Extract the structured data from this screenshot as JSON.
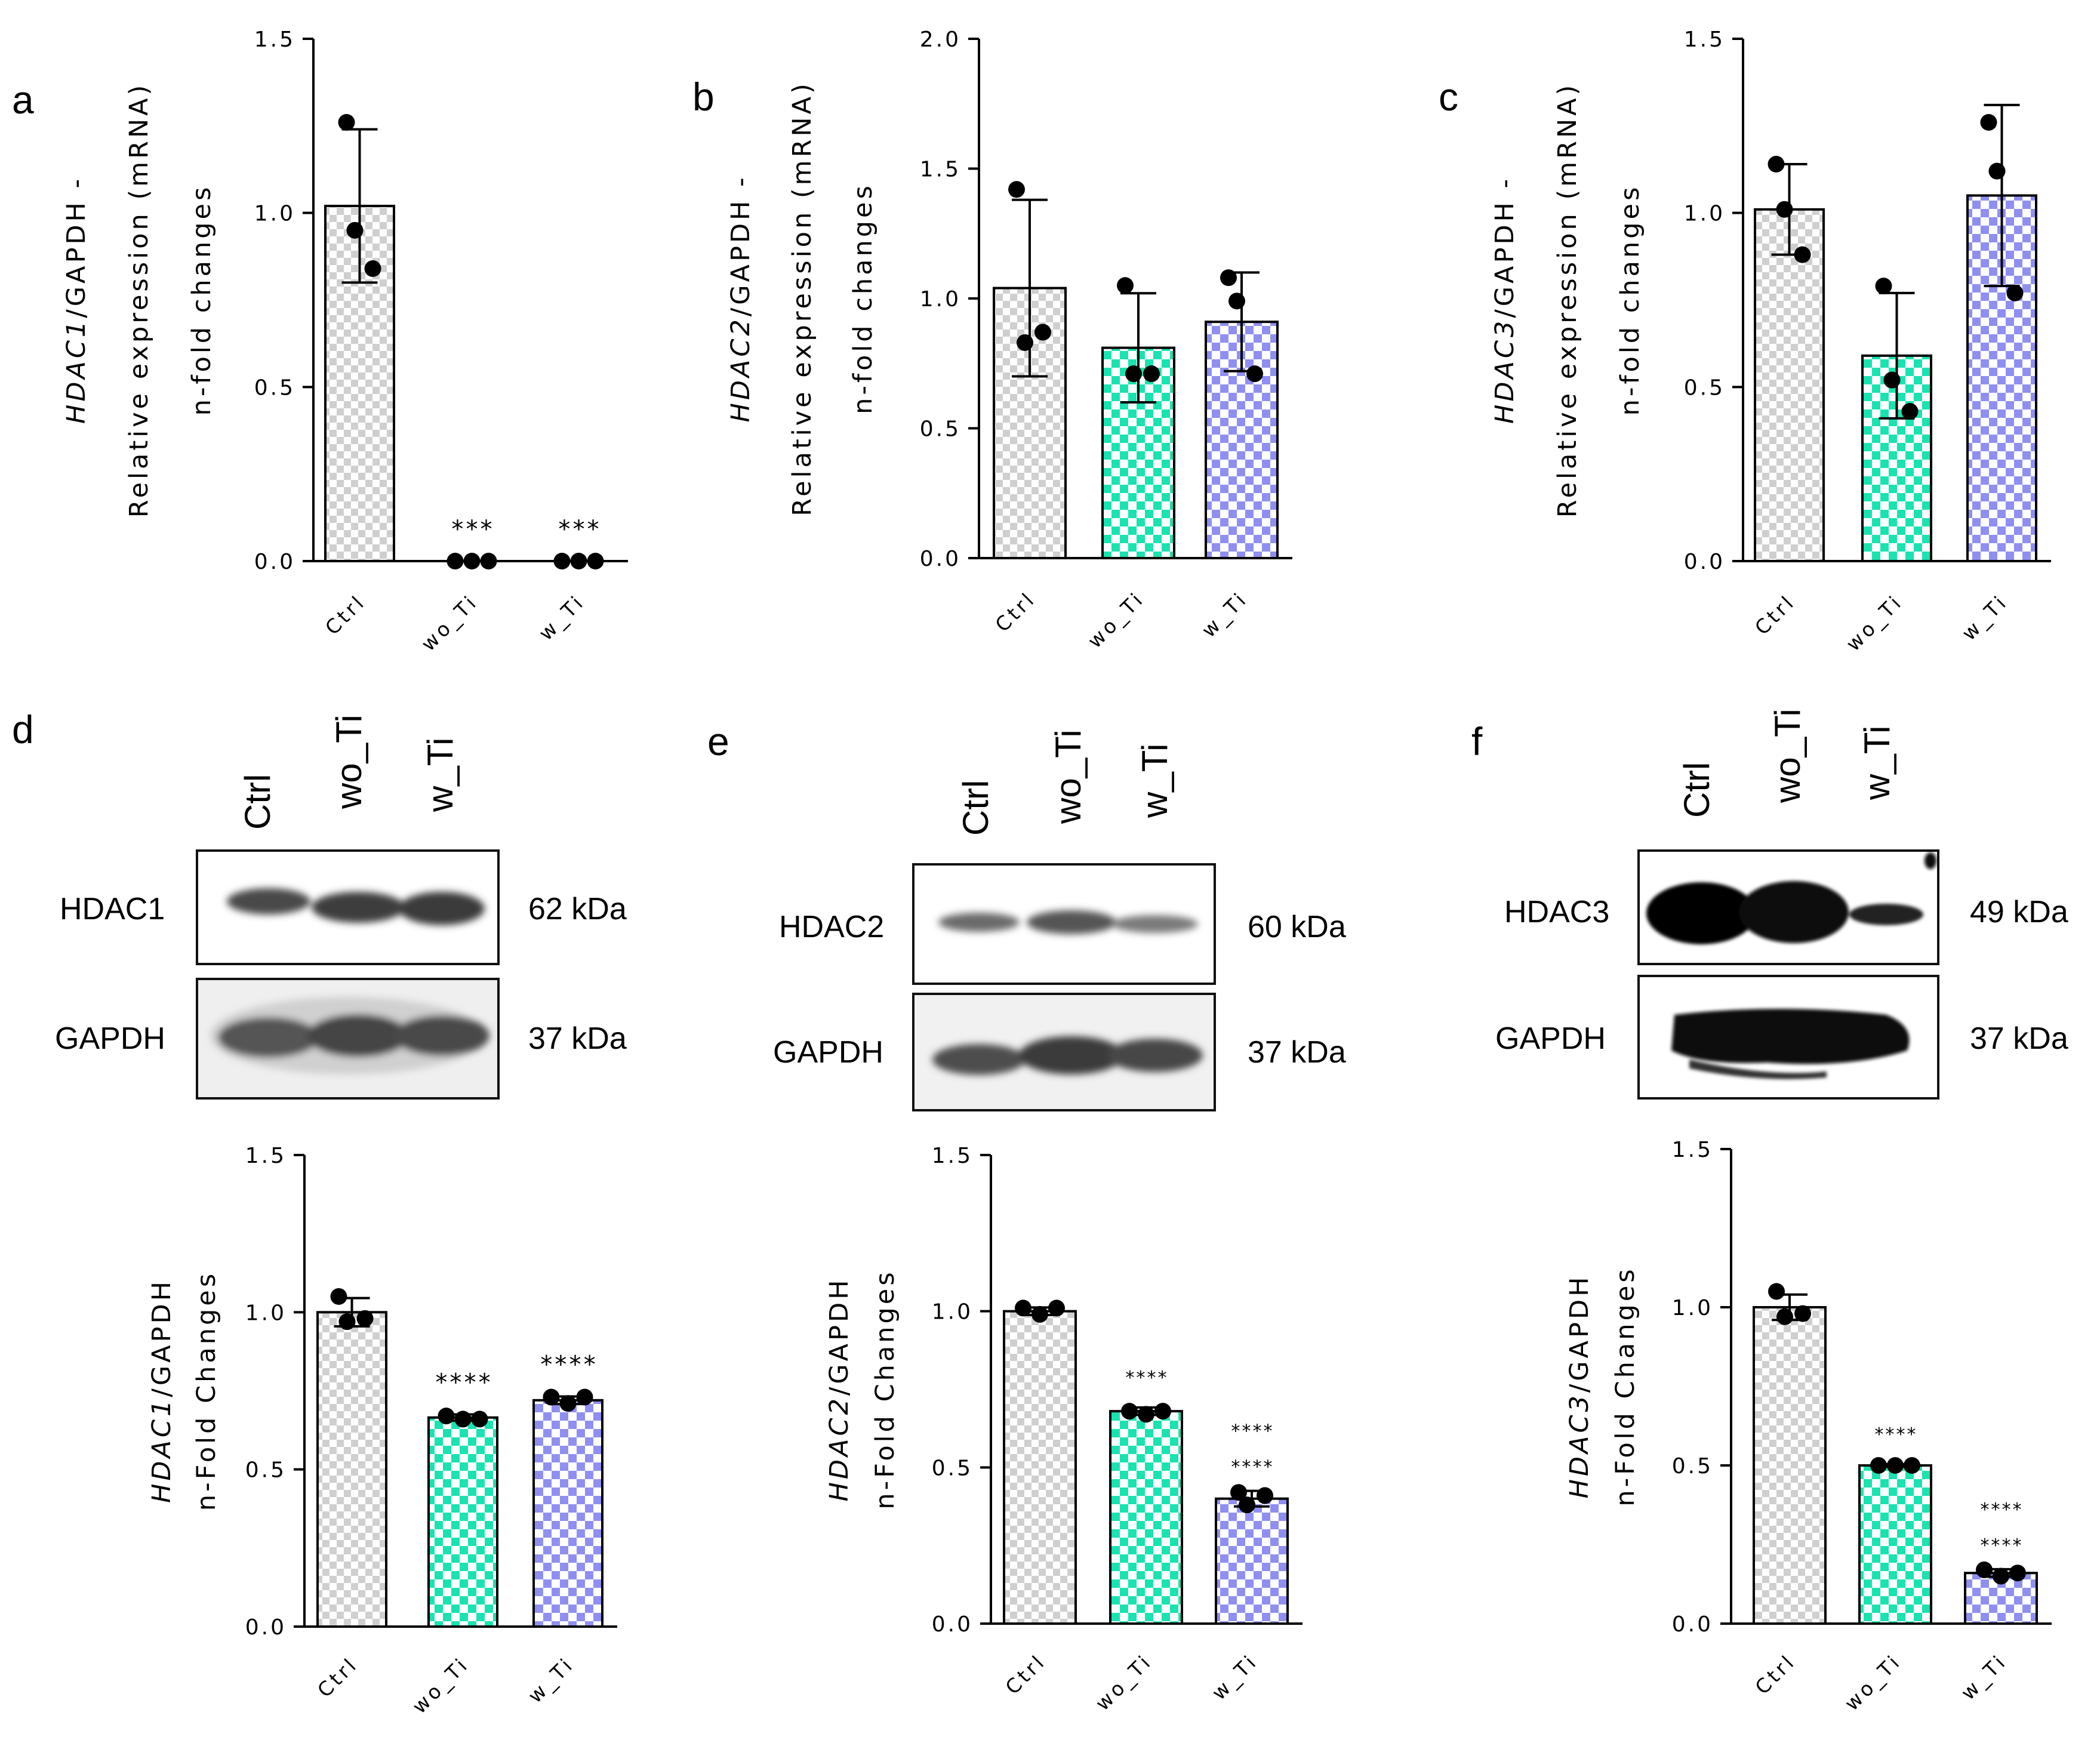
{
  "lane_labels": [
    "Ctrl",
    "wo_Ti",
    "w_Ti"
  ],
  "colors": {
    "axis": "#000000",
    "ctrl_fill": "#cfcfcf",
    "wo_ti_fill": "#19e3b0",
    "w_ti_fill": "#8f8ff2",
    "sig_red": "#ff1f1f"
  },
  "panels": {
    "a": {
      "letter": "a"
    },
    "b": {
      "letter": "b"
    },
    "c": {
      "letter": "c"
    },
    "d": {
      "letter": "d"
    },
    "e": {
      "letter": "e"
    },
    "f": {
      "letter": "f"
    }
  },
  "blots": {
    "d": {
      "target": "HDAC1",
      "target_kda": "62 kDa",
      "loading": "GAPDH",
      "loading_kda": "37 kDa"
    },
    "e": {
      "target": "HDAC2",
      "target_kda": "60 kDa",
      "loading": "GAPDH",
      "loading_kda": "37 kDa"
    },
    "f": {
      "target": "HDAC3",
      "target_kda": "49 kDa",
      "loading": "GAPDH",
      "loading_kda": "37 kDa"
    }
  },
  "chart_data": [
    {
      "id": "a",
      "type": "bar",
      "categories": [
        "Ctrl",
        "wo_Ti",
        "w_Ti"
      ],
      "values": [
        1.02,
        0.0,
        0.0
      ],
      "errors": [
        0.22,
        0.0,
        0.0
      ],
      "points": [
        [
          1.26,
          0.95,
          0.84
        ],
        [
          0.0,
          0.0,
          0.0
        ],
        [
          0.0,
          0.0,
          0.0
        ]
      ],
      "ylim": [
        0,
        1.5
      ],
      "yticks": [
        "0.0",
        "0.5",
        "1.0",
        "1.5"
      ],
      "ylabel_gene": "HDAC1",
      "ylabel_suffix": "/GAPDH -",
      "ylabel_line2": "Relative expression (mRNA)",
      "ylabel_line3": "n-fold changes",
      "significance": [
        "",
        "***",
        "***"
      ],
      "significance_red": [
        "",
        "",
        ""
      ]
    },
    {
      "id": "b",
      "type": "bar",
      "categories": [
        "Ctrl",
        "wo_Ti",
        "w_Ti"
      ],
      "values": [
        1.04,
        0.81,
        0.91
      ],
      "errors": [
        0.34,
        0.21,
        0.19
      ],
      "points": [
        [
          1.42,
          0.83,
          0.87
        ],
        [
          1.05,
          0.71,
          0.71
        ],
        [
          1.08,
          0.99,
          0.71
        ]
      ],
      "ylim": [
        0,
        2.0
      ],
      "yticks": [
        "0.0",
        "0.5",
        "1.0",
        "1.5",
        "2.0"
      ],
      "ylabel_gene": "HDAC2",
      "ylabel_suffix": "/GAPDH -",
      "ylabel_line2": "Relative expression (mRNA)",
      "ylabel_line3": "n-fold changes",
      "significance": [
        "",
        "",
        ""
      ],
      "significance_red": [
        "",
        "",
        ""
      ]
    },
    {
      "id": "c",
      "type": "bar",
      "categories": [
        "Ctrl",
        "wo_Ti",
        "w_Ti"
      ],
      "values": [
        1.01,
        0.59,
        1.05
      ],
      "errors": [
        0.13,
        0.18,
        0.26
      ],
      "points": [
        [
          1.14,
          1.01,
          0.88
        ],
        [
          0.79,
          0.52,
          0.43
        ],
        [
          1.26,
          1.12,
          0.77
        ]
      ],
      "ylim": [
        0,
        1.5
      ],
      "yticks": [
        "0.0",
        "0.5",
        "1.0",
        "1.5"
      ],
      "ylabel_gene": "HDAC3",
      "ylabel_suffix": "/GAPDH -",
      "ylabel_line2": "Relative expression (mRNA)",
      "ylabel_line3": "n-fold changes",
      "significance": [
        "",
        "",
        ""
      ],
      "significance_red": [
        "",
        "",
        ""
      ]
    },
    {
      "id": "d",
      "type": "bar",
      "categories": [
        "Ctrl",
        "wo_Ti",
        "w_Ti"
      ],
      "values": [
        1.0,
        0.665,
        0.72
      ],
      "errors": [
        0.045,
        0.01,
        0.012
      ],
      "points": [
        [
          1.05,
          0.97,
          0.98
        ],
        [
          0.67,
          0.66,
          0.66
        ],
        [
          0.73,
          0.71,
          0.73
        ]
      ],
      "ylim": [
        0,
        1.5
      ],
      "yticks": [
        "0.0",
        "0.5",
        "1.0",
        "1.5"
      ],
      "ylabel_gene": "HDAC1",
      "ylabel_suffix": "/GAPDH",
      "ylabel_line2": "n-Fold Changes",
      "ylabel_line3": "",
      "significance": [
        "",
        "****",
        "****"
      ],
      "significance_red": [
        "",
        "",
        ""
      ]
    },
    {
      "id": "e",
      "type": "bar",
      "categories": [
        "Ctrl",
        "wo_Ti",
        "w_Ti"
      ],
      "values": [
        1.0,
        0.68,
        0.4
      ],
      "errors": [
        0.012,
        0.012,
        0.025
      ],
      "points": [
        [
          1.01,
          0.99,
          1.01
        ],
        [
          0.68,
          0.67,
          0.68
        ],
        [
          0.42,
          0.38,
          0.41
        ]
      ],
      "ylim": [
        0,
        1.5
      ],
      "yticks": [
        "0.0",
        "0.5",
        "1.0",
        "1.5"
      ],
      "ylabel_gene": "HDAC2",
      "ylabel_suffix": "/GAPDH",
      "ylabel_line2": "n-Fold Changes",
      "ylabel_line3": "",
      "significance": [
        "",
        "****",
        "****"
      ],
      "significance_red": [
        "",
        "",
        "****"
      ]
    },
    {
      "id": "f",
      "type": "bar",
      "categories": [
        "Ctrl",
        "wo_Ti",
        "w_Ti"
      ],
      "values": [
        1.0,
        0.5,
        0.16
      ],
      "errors": [
        0.04,
        0.004,
        0.012
      ],
      "points": [
        [
          1.05,
          0.97,
          0.98
        ],
        [
          0.5,
          0.5,
          0.5
        ],
        [
          0.17,
          0.15,
          0.16
        ]
      ],
      "ylim": [
        0,
        1.5
      ],
      "yticks": [
        "0.0",
        "0.5",
        "1.0",
        "1.5"
      ],
      "ylabel_gene": "HDAC3",
      "ylabel_suffix": "/GAPDH",
      "ylabel_line2": "n-Fold Changes",
      "ylabel_line3": "",
      "significance": [
        "",
        "****",
        "****"
      ],
      "significance_red": [
        "",
        "",
        "****"
      ]
    }
  ]
}
